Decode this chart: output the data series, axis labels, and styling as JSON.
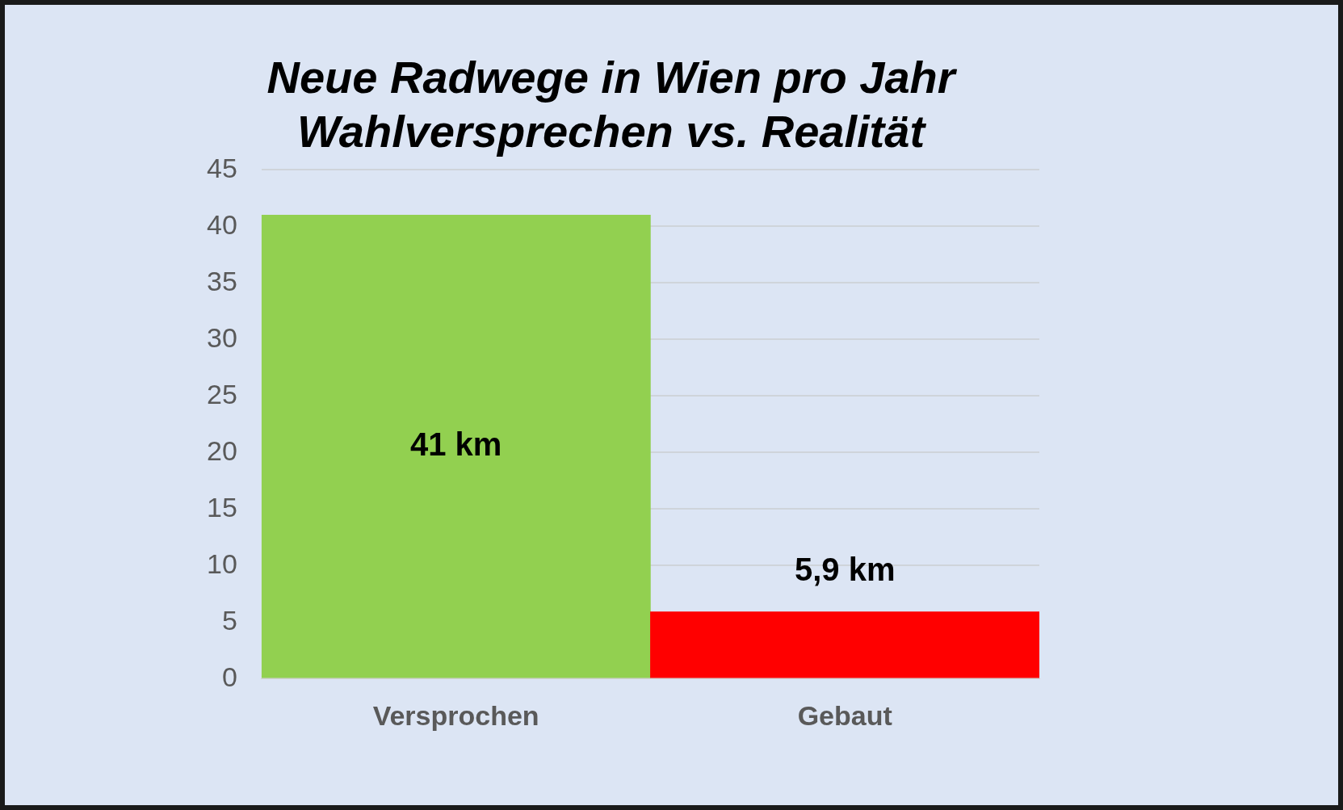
{
  "chart_data": {
    "type": "bar",
    "title": [
      "Neue Radwege in Wien pro Jahr",
      "Wahlversprechen vs. Realität"
    ],
    "categories": [
      "Versprochen",
      "Gebaut"
    ],
    "values": [
      41,
      5.9
    ],
    "colors": [
      "#92d050",
      "#ff0000"
    ],
    "value_labels": [
      "41 km",
      "5,9 km"
    ],
    "ylim": [
      0,
      45
    ],
    "yticks": [
      0,
      5,
      10,
      15,
      20,
      25,
      30,
      35,
      40,
      45
    ],
    "grid": "y",
    "legend": false
  }
}
